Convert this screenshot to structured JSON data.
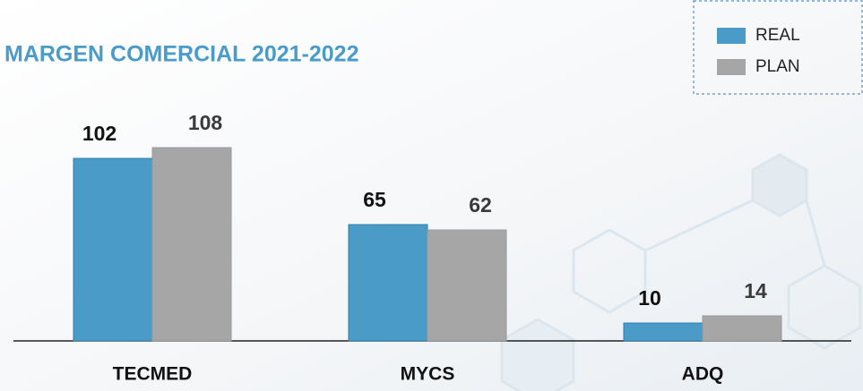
{
  "chart_data": {
    "type": "bar",
    "title": "MARGEN COMERCIAL 2021-2022",
    "categories": [
      "TECMED",
      "MYCS",
      "ADQ"
    ],
    "series": [
      {
        "name": "REAL",
        "color": "#4a9bc7",
        "values": [
          102,
          65,
          10
        ]
      },
      {
        "name": "PLAN",
        "color": "#a6a6a6",
        "values": [
          108,
          62,
          14
        ]
      }
    ],
    "legend": "top-right"
  }
}
